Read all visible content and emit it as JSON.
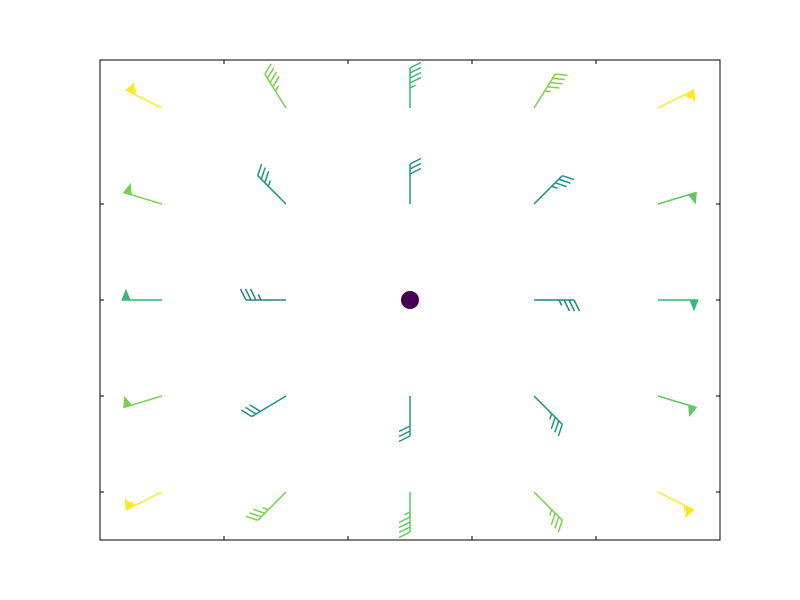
{
  "chart_data": {
    "type": "barbs",
    "title": "",
    "xlabel": "",
    "ylabel": "",
    "xlim": [
      -5,
      5
    ],
    "ylim": [
      -5,
      5
    ],
    "x_ticks": [
      -3,
      -1,
      1,
      3
    ],
    "y_ticks": [
      -4,
      -2,
      0,
      2
    ],
    "tick_labels_shown": false,
    "grid": false,
    "colormap": "viridis",
    "color_min": "#440154",
    "color_max": "#fde725",
    "calm_marker_color": "#440154",
    "barb_color_scale": [
      "#440154",
      "#21918c",
      "#5ec962",
      "#fde725"
    ],
    "points": [
      {
        "x": -4,
        "y": -4,
        "u": 50,
        "v": 25,
        "color": "#fde725"
      },
      {
        "x": -2,
        "y": -4,
        "u": 25,
        "v": 25,
        "color": "#7ad151"
      },
      {
        "x": 0,
        "y": -4,
        "u": 0,
        "v": 45,
        "color": "#5ec962"
      },
      {
        "x": 2,
        "y": -4,
        "u": -25,
        "v": 25,
        "color": "#7ad151"
      },
      {
        "x": 4,
        "y": -4,
        "u": -50,
        "v": 25,
        "color": "#fde725"
      },
      {
        "x": -4,
        "y": -2,
        "u": 50,
        "v": 15,
        "color": "#7ad151"
      },
      {
        "x": -2,
        "y": -2,
        "u": 25,
        "v": 15,
        "color": "#21918c"
      },
      {
        "x": 0,
        "y": -2,
        "u": 0,
        "v": 30,
        "color": "#21918c"
      },
      {
        "x": 2,
        "y": -2,
        "u": -25,
        "v": 25,
        "color": "#21918c"
      },
      {
        "x": 4,
        "y": -2,
        "u": -50,
        "v": 15,
        "color": "#5ec962"
      },
      {
        "x": -4,
        "y": 0,
        "u": 50,
        "v": 0,
        "color": "#35b779"
      },
      {
        "x": -2,
        "y": 0,
        "u": 35,
        "v": 0,
        "color": "#26828e"
      },
      {
        "x": 0,
        "y": 0,
        "u": 0,
        "v": 0,
        "color": "#440154"
      },
      {
        "x": 2,
        "y": 0,
        "u": -35,
        "v": 0,
        "color": "#26828e"
      },
      {
        "x": 4,
        "y": 0,
        "u": -50,
        "v": 0,
        "color": "#35b779"
      },
      {
        "x": -4,
        "y": 2,
        "u": 50,
        "v": -15,
        "color": "#7ad151"
      },
      {
        "x": -2,
        "y": 2,
        "u": 25,
        "v": -25,
        "color": "#21918c"
      },
      {
        "x": 0,
        "y": 2,
        "u": 0,
        "v": -30,
        "color": "#21918c"
      },
      {
        "x": 2,
        "y": 2,
        "u": -25,
        "v": -25,
        "color": "#21918c"
      },
      {
        "x": 4,
        "y": 2,
        "u": -50,
        "v": -15,
        "color": "#5ec962"
      },
      {
        "x": -4,
        "y": 4,
        "u": 50,
        "v": -25,
        "color": "#fde725"
      },
      {
        "x": -2,
        "y": 4,
        "u": 25,
        "v": -40,
        "color": "#7ad151"
      },
      {
        "x": 0,
        "y": 4,
        "u": 0,
        "v": -45,
        "color": "#35b779"
      },
      {
        "x": 2,
        "y": 4,
        "u": -25,
        "v": -40,
        "color": "#7ad151"
      },
      {
        "x": 4,
        "y": 4,
        "u": -50,
        "v": -25,
        "color": "#fde725"
      }
    ]
  }
}
